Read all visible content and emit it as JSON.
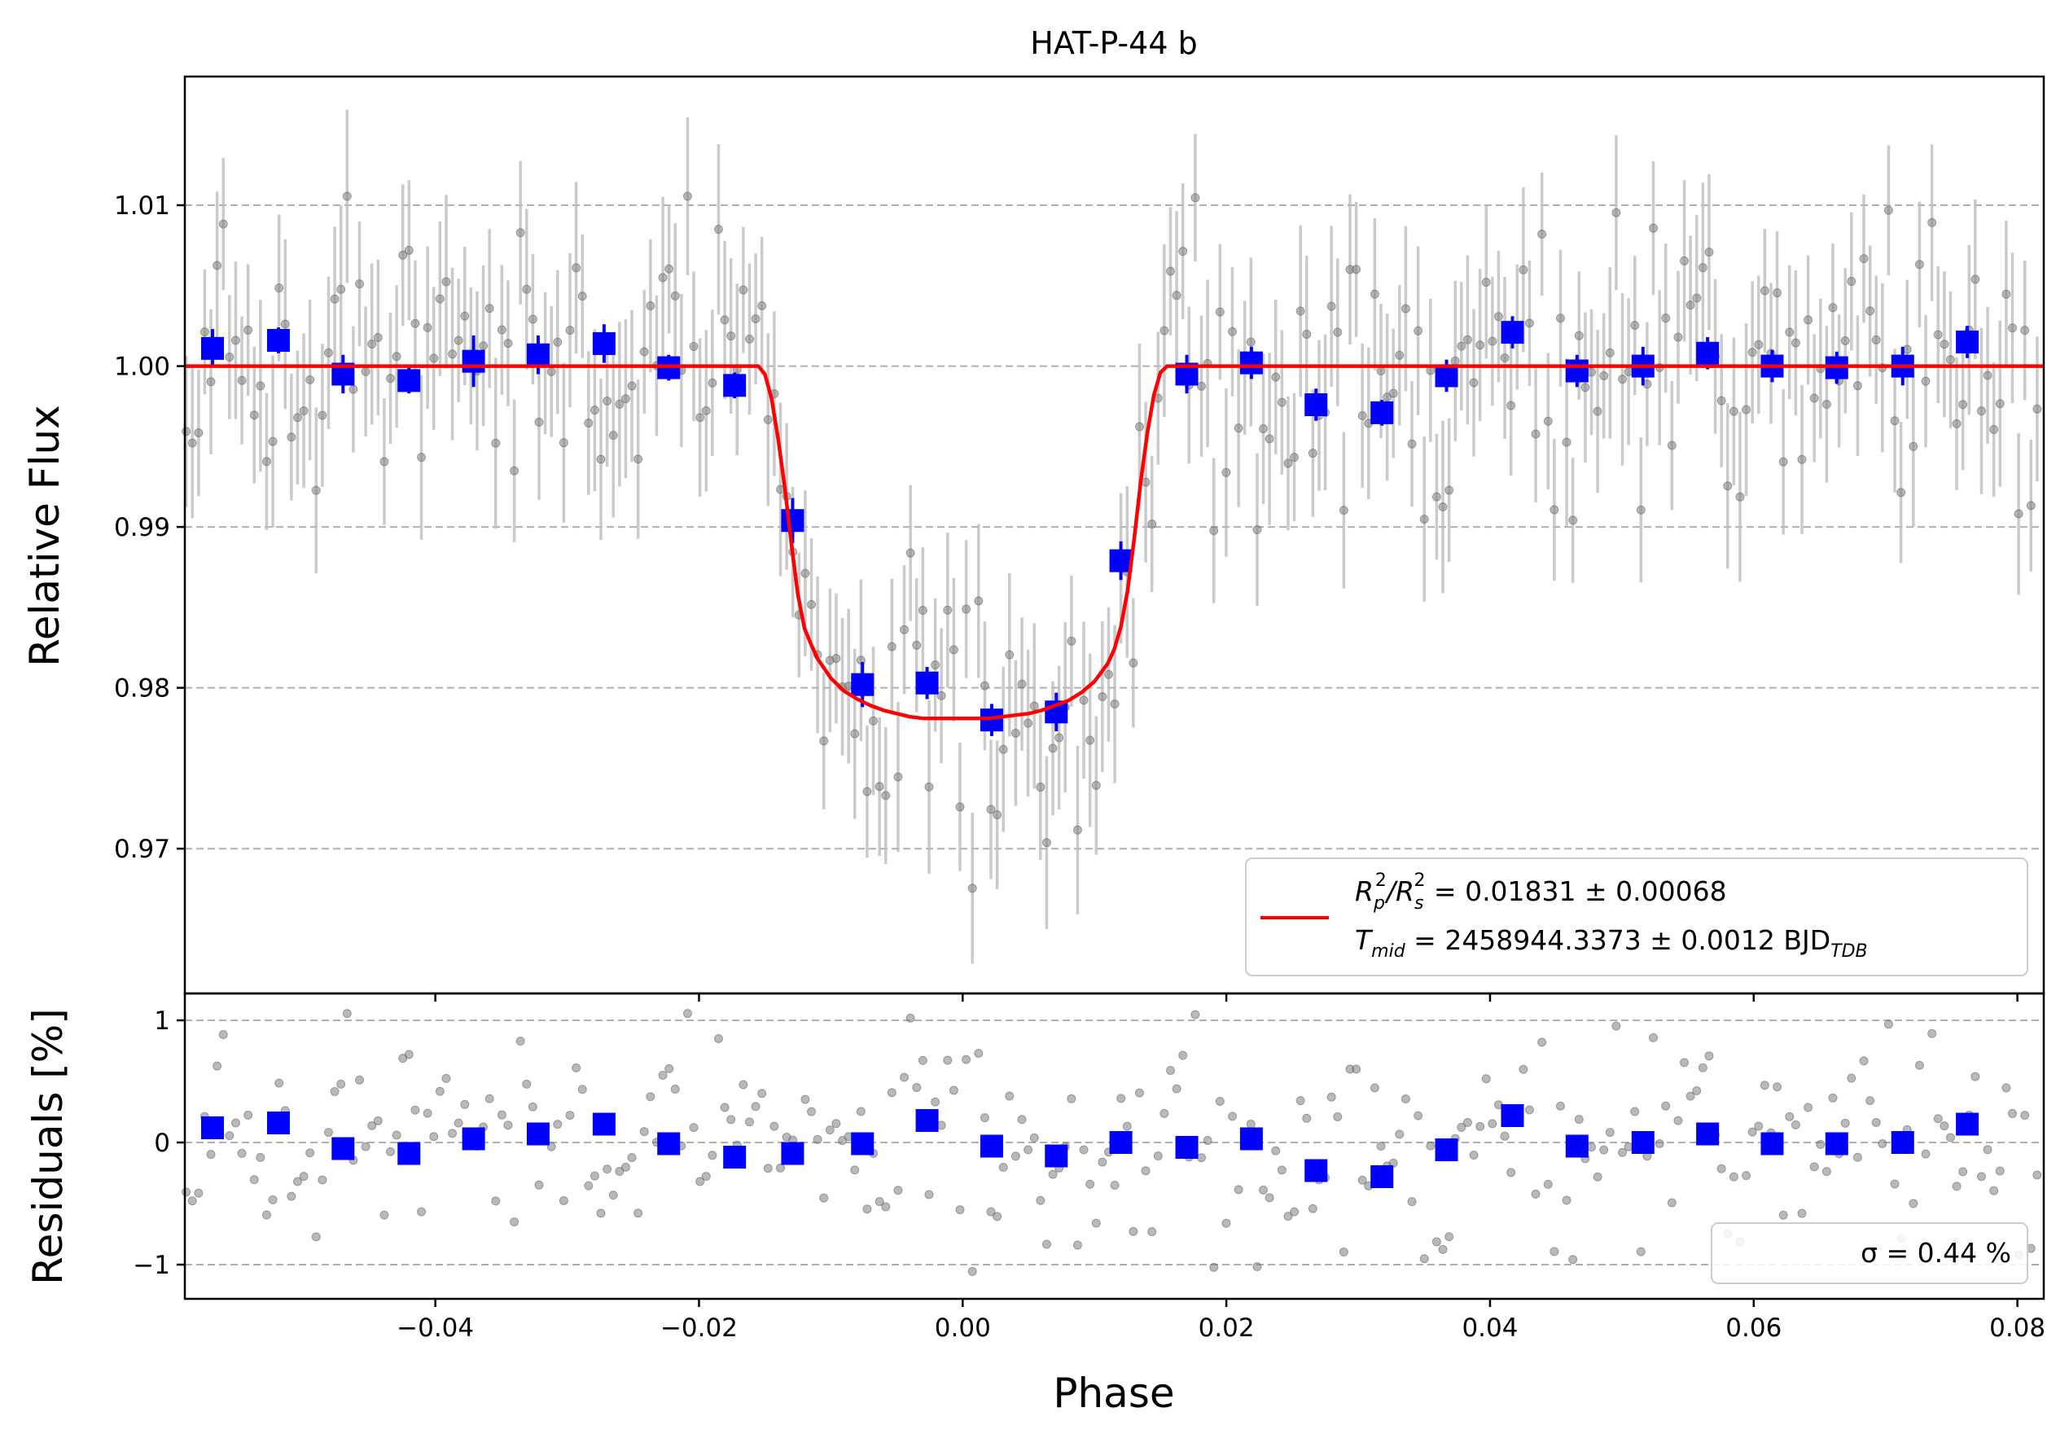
{
  "chart_data": [
    {
      "type": "scatter",
      "panel": "light-curve",
      "title": "HAT-P-44 b",
      "xlabel": "",
      "ylabel": "Relative Flux",
      "xlim": [
        -0.059,
        0.082
      ],
      "ylim": [
        0.961,
        1.018
      ],
      "x_ticks": [
        -0.04,
        -0.02,
        0.0,
        0.02,
        0.04,
        0.06,
        0.08
      ],
      "y_ticks": [
        0.97,
        0.98,
        0.99,
        1.0,
        1.01
      ],
      "y_tick_labels": [
        "0.97",
        "0.98",
        "0.99",
        "1.00",
        "1.01"
      ],
      "grid": "horizontal dashed",
      "legend_position": "lower-right",
      "legend": {
        "line1": {
          "main": "R",
          "sub1": "p",
          "sup1": "2",
          "mid": "/R",
          "sub2": "s",
          "sup2": "2",
          "rest": " = 0.01831 ± 0.00068"
        },
        "line2": {
          "main": "T",
          "sub1": "mid",
          "rest": " = 2458944.3373 ± 0.0012 BJD",
          "sub2": "TDB"
        }
      },
      "model": {
        "name": "transit model",
        "color": "#ff0000",
        "x": [
          -0.059,
          -0.0155,
          -0.015,
          -0.0145,
          -0.014,
          -0.0135,
          -0.013,
          -0.0125,
          -0.012,
          -0.0115,
          -0.011,
          -0.01,
          -0.009,
          -0.008,
          -0.007,
          -0.006,
          -0.005,
          -0.004,
          -0.003,
          -0.002,
          -0.001,
          0.0,
          0.001,
          0.002,
          0.003,
          0.004,
          0.005,
          0.006,
          0.007,
          0.008,
          0.009,
          0.01,
          0.011,
          0.0115,
          0.012,
          0.0125,
          0.013,
          0.0135,
          0.014,
          0.0145,
          0.015,
          0.0155,
          0.082
        ],
        "y": [
          1.0,
          1.0,
          0.9995,
          0.998,
          0.9955,
          0.9925,
          0.989,
          0.9858,
          0.9837,
          0.9827,
          0.9818,
          0.9806,
          0.9798,
          0.9793,
          0.9789,
          0.9786,
          0.9784,
          0.9782,
          0.9781,
          0.9781,
          0.9781,
          0.9781,
          0.9781,
          0.9781,
          0.9782,
          0.9783,
          0.9784,
          0.9786,
          0.9789,
          0.9792,
          0.9797,
          0.9804,
          0.9815,
          0.9824,
          0.9838,
          0.986,
          0.9892,
          0.9928,
          0.9958,
          0.9982,
          0.9996,
          1.0,
          1.0
        ]
      },
      "binned": {
        "name": "binned data",
        "color": "#0000ff",
        "x": [
          -0.0569,
          -0.0519,
          -0.047,
          -0.042,
          -0.0371,
          -0.0322,
          -0.0272,
          -0.0223,
          -0.0173,
          -0.0129,
          -0.0076,
          -0.0027,
          0.0022,
          0.0071,
          0.012,
          0.017,
          0.0219,
          0.0268,
          0.0318,
          0.0367,
          0.0417,
          0.0466,
          0.0516,
          0.0565,
          0.0614,
          0.0663,
          0.0713,
          0.0762
        ],
        "y": [
          1.0011,
          1.0016,
          0.9995,
          0.9991,
          1.0003,
          1.0007,
          1.0014,
          0.9999,
          0.9988,
          0.9904,
          0.9802,
          0.9803,
          0.978,
          0.9785,
          0.9879,
          0.9995,
          1.0002,
          0.9976,
          0.9971,
          0.9994,
          1.0021,
          0.9997,
          1.0,
          1.0008,
          1.0,
          0.9999,
          1.0,
          1.0015
        ],
        "yerr": [
          0.0012,
          0.0008,
          0.0012,
          0.0008,
          0.0016,
          0.0012,
          0.0012,
          0.0008,
          0.0008,
          0.0014,
          0.0014,
          0.001,
          0.001,
          0.0012,
          0.0012,
          0.0012,
          0.001,
          0.001,
          0.0008,
          0.001,
          0.001,
          0.001,
          0.0012,
          0.001,
          0.001,
          0.001,
          0.0012,
          0.001
        ]
      },
      "raw": {
        "name": "raw data",
        "color": "#808080",
        "x_start": -0.0589,
        "x_end": 0.0815,
        "count": 300,
        "scatter_percent": 0.44,
        "typical_yerr": 0.0045
      }
    },
    {
      "type": "scatter",
      "panel": "residuals",
      "xlabel": "Phase",
      "ylabel": "Residuals [%]",
      "xlim": [
        -0.059,
        0.082
      ],
      "ylim": [
        -1.28,
        1.22
      ],
      "x_ticks": [
        -0.04,
        -0.02,
        0.0,
        0.02,
        0.04,
        0.06,
        0.08
      ],
      "x_tick_labels": [
        "−0.04",
        "−0.02",
        "0.00",
        "0.02",
        "0.04",
        "0.06",
        "0.08"
      ],
      "y_ticks": [
        -1,
        0,
        1
      ],
      "y_tick_labels": [
        "−1",
        "0",
        "1"
      ],
      "grid": "horizontal dashed",
      "legend_position": "lower-right",
      "legend_text": "σ = 0.44 %",
      "binned_residuals": [
        0.12,
        0.16,
        -0.05,
        -0.09,
        0.03,
        0.07,
        0.15,
        -0.01,
        -0.12,
        -0.09,
        -0.01,
        0.18,
        -0.03,
        -0.11,
        0.0,
        -0.04,
        0.03,
        -0.23,
        -0.28,
        -0.06,
        0.22,
        -0.03,
        0.0,
        0.07,
        -0.01,
        -0.01,
        0.0,
        0.15
      ]
    }
  ]
}
